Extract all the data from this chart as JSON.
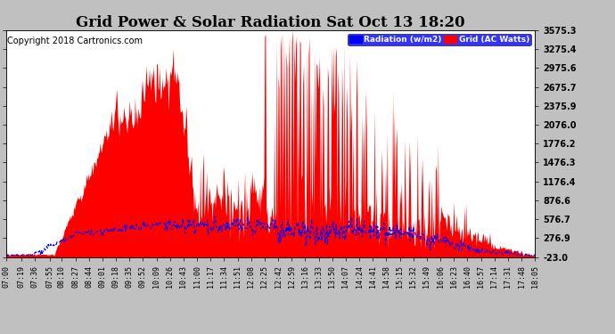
{
  "title": "Grid Power & Solar Radiation Sat Oct 13 18:20",
  "copyright": "Copyright 2018 Cartronics.com",
  "legend_radiation": "Radiation (w/m2)",
  "legend_grid": "Grid (AC Watts)",
  "yticks": [
    -23.0,
    276.9,
    576.7,
    876.6,
    1176.4,
    1476.3,
    1776.2,
    2076.0,
    2375.9,
    2675.7,
    2975.6,
    3275.4,
    3575.3
  ],
  "ymin": -23.0,
  "ymax": 3575.3,
  "bg_color": "#c0c0c0",
  "plot_bg_color": "#ffffff",
  "grid_color": "#aaaaaa",
  "radiation_color": "#0000ff",
  "grid_ac_color": "#ff0000",
  "title_fontsize": 12,
  "copyright_fontsize": 7,
  "xtick_fontsize": 6,
  "ytick_fontsize": 7,
  "xtick_labels": [
    "07:00",
    "07:19",
    "07:36",
    "07:55",
    "08:10",
    "08:27",
    "08:44",
    "09:01",
    "09:18",
    "09:35",
    "09:52",
    "10:09",
    "10:26",
    "10:43",
    "11:00",
    "11:17",
    "11:34",
    "11:51",
    "12:08",
    "12:25",
    "12:42",
    "12:59",
    "13:16",
    "13:33",
    "13:50",
    "14:07",
    "14:24",
    "14:41",
    "14:58",
    "15:15",
    "15:32",
    "15:49",
    "16:06",
    "16:23",
    "16:40",
    "16:57",
    "17:14",
    "17:31",
    "17:48",
    "18:05"
  ]
}
